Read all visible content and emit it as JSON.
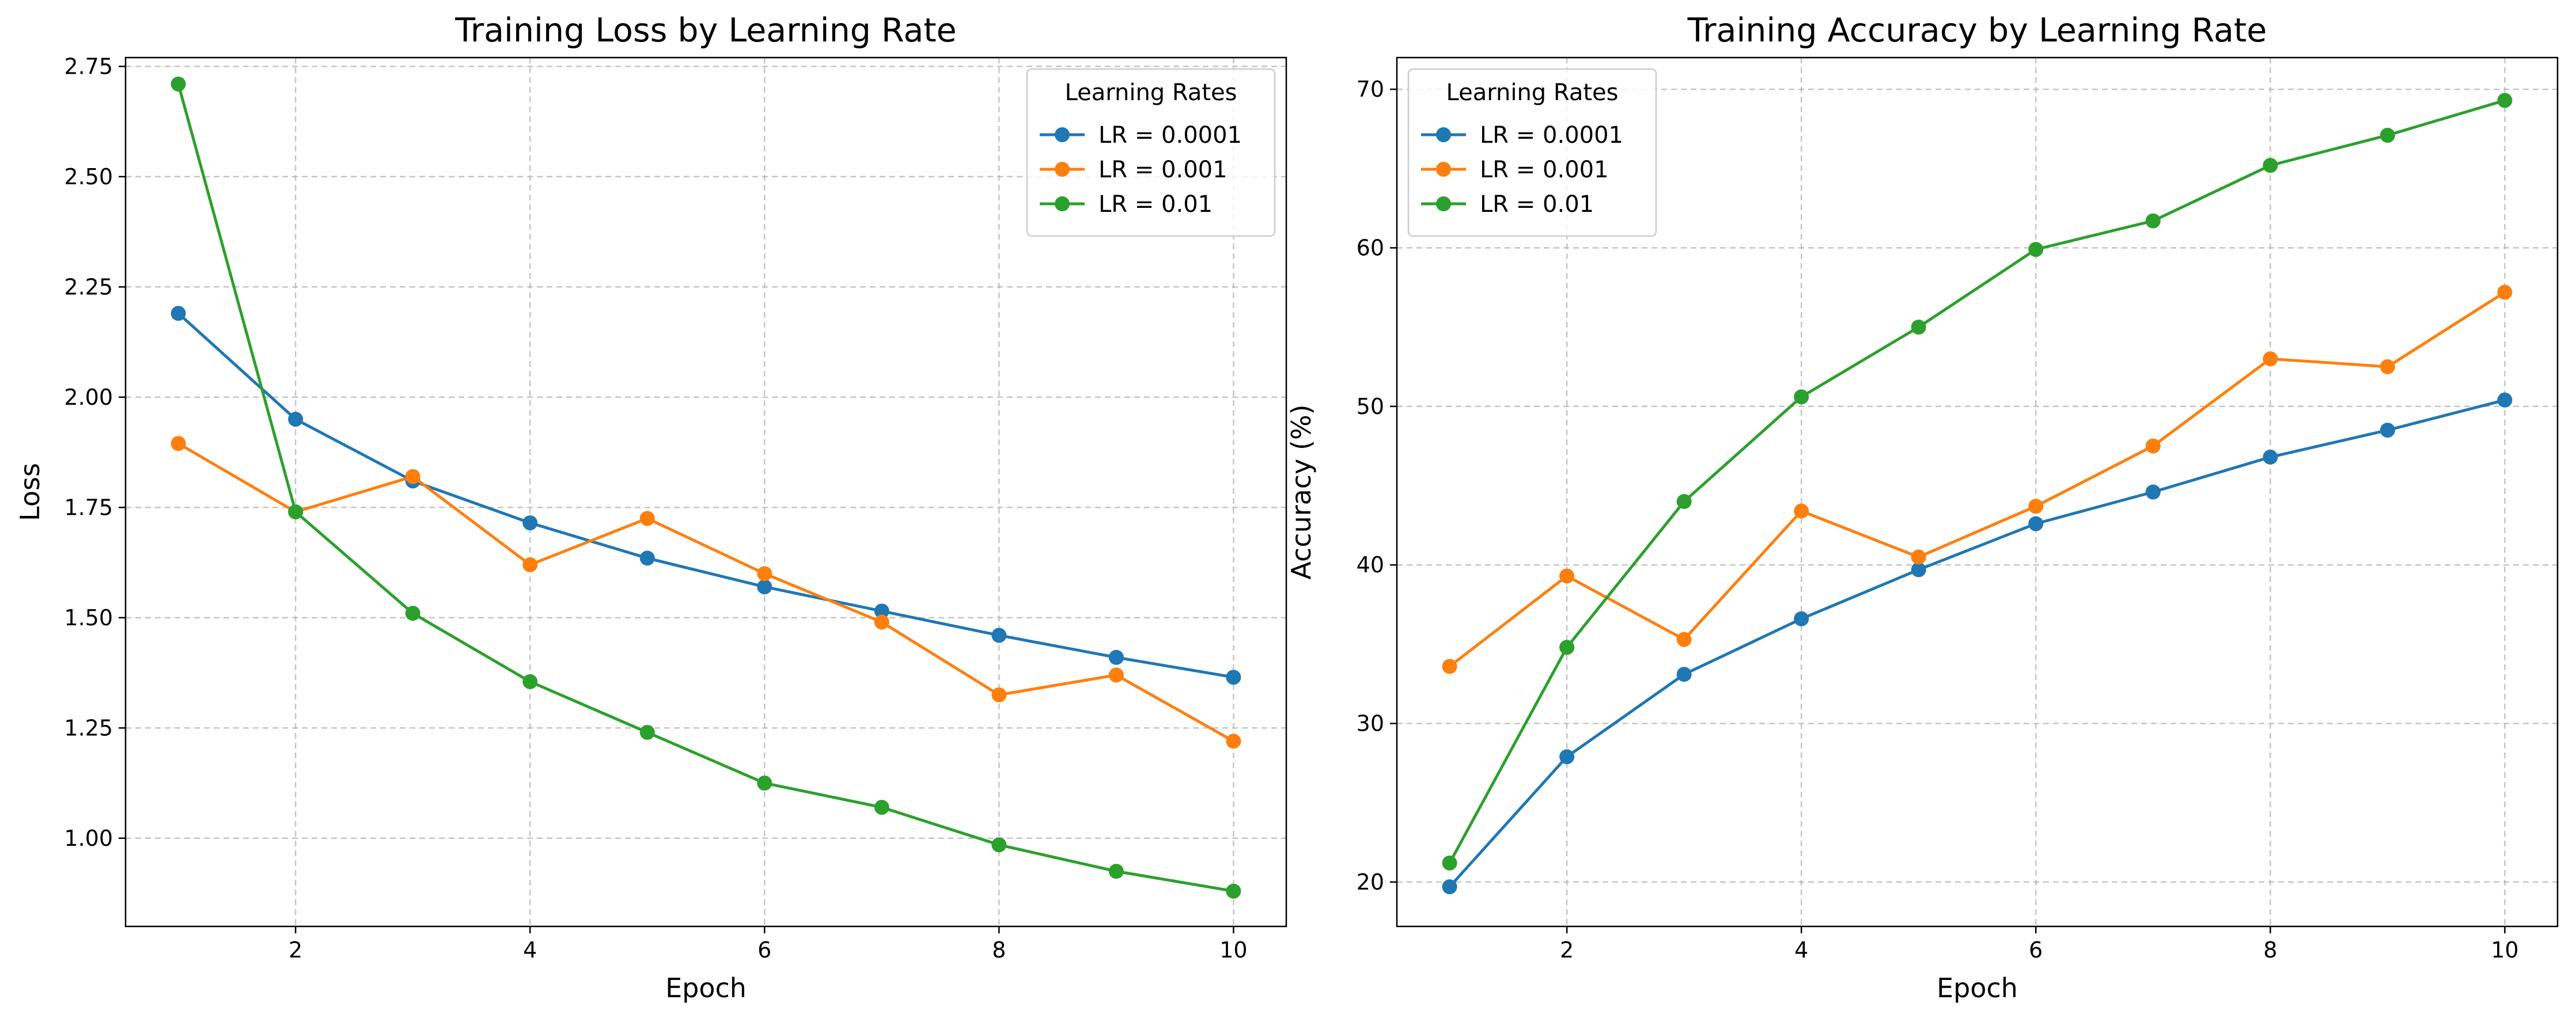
{
  "chart_data": [
    {
      "type": "line",
      "title": "Training Loss by Learning Rate",
      "xlabel": "Epoch",
      "ylabel": "Loss",
      "xlim": [
        0.55,
        10.45
      ],
      "ylim": [
        0.8,
        2.77
      ],
      "xticks": [
        2,
        4,
        6,
        8,
        10
      ],
      "xtick_labels": [
        "2",
        "4",
        "6",
        "8",
        "10"
      ],
      "yticks": [
        1.0,
        1.25,
        1.5,
        1.75,
        2.0,
        2.25,
        2.5,
        2.75
      ],
      "ytick_labels": [
        "1.00",
        "1.25",
        "1.50",
        "1.75",
        "2.00",
        "2.25",
        "2.50",
        "2.75"
      ],
      "grid": true,
      "legend": {
        "title": "Learning Rates",
        "position": "top-right"
      },
      "x": [
        1,
        2,
        3,
        4,
        5,
        6,
        7,
        8,
        9,
        10
      ],
      "series": [
        {
          "name": "LR = 0.0001",
          "color": "#1f77b4",
          "values": [
            2.19,
            1.95,
            1.81,
            1.715,
            1.635,
            1.57,
            1.515,
            1.46,
            1.41,
            1.365
          ]
        },
        {
          "name": "LR = 0.001",
          "color": "#ff7f0e",
          "values": [
            1.895,
            1.74,
            1.82,
            1.62,
            1.725,
            1.6,
            1.49,
            1.325,
            1.37,
            1.22
          ]
        },
        {
          "name": "LR = 0.01",
          "color": "#2ca02c",
          "values": [
            2.71,
            1.74,
            1.51,
            1.355,
            1.24,
            1.125,
            1.07,
            0.985,
            0.925,
            0.88
          ]
        }
      ]
    },
    {
      "type": "line",
      "title": "Training Accuracy by Learning Rate",
      "xlabel": "Epoch",
      "ylabel": "Accuracy (%)",
      "xlim": [
        0.55,
        10.45
      ],
      "ylim": [
        17.2,
        72.0
      ],
      "xticks": [
        2,
        4,
        6,
        8,
        10
      ],
      "xtick_labels": [
        "2",
        "4",
        "6",
        "8",
        "10"
      ],
      "yticks": [
        20,
        30,
        40,
        50,
        60,
        70
      ],
      "ytick_labels": [
        "20",
        "30",
        "40",
        "50",
        "60",
        "70"
      ],
      "grid": true,
      "legend": {
        "title": "Learning Rates",
        "position": "top-left"
      },
      "x": [
        1,
        2,
        3,
        4,
        5,
        6,
        7,
        8,
        9,
        10
      ],
      "series": [
        {
          "name": "LR = 0.0001",
          "color": "#1f77b4",
          "values": [
            19.7,
            27.9,
            33.1,
            36.6,
            39.7,
            42.6,
            44.6,
            46.8,
            48.5,
            50.4
          ]
        },
        {
          "name": "LR = 0.001",
          "color": "#ff7f0e",
          "values": [
            33.6,
            39.3,
            35.3,
            43.4,
            40.5,
            43.7,
            47.5,
            53.0,
            52.5,
            57.2
          ]
        },
        {
          "name": "LR = 0.01",
          "color": "#2ca02c",
          "values": [
            21.2,
            34.8,
            44.0,
            50.6,
            55.0,
            59.9,
            61.7,
            65.2,
            67.1,
            69.3
          ]
        }
      ]
    }
  ]
}
